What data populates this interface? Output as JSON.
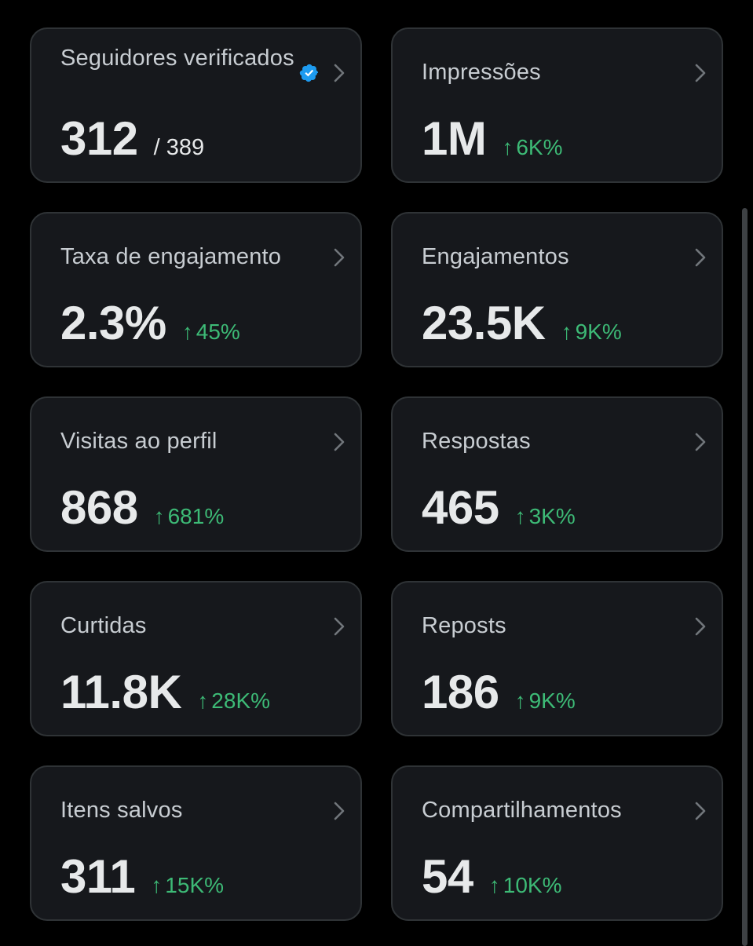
{
  "accent": {
    "verified": "#1d9bf0",
    "positive": "#3dba76"
  },
  "cards": [
    {
      "label": "Seguidores verificados",
      "value": "312",
      "total": "/ 389",
      "icon": "verified-badge-icon"
    },
    {
      "label": "Impressões",
      "value": "1M",
      "delta": "6K%",
      "arrow": "↑"
    },
    {
      "label": "Taxa de engajamento",
      "value": "2.3%",
      "delta": "45%",
      "arrow": "↑"
    },
    {
      "label": "Engajamentos",
      "value": "23.5K",
      "delta": "9K%",
      "arrow": "↑"
    },
    {
      "label": "Visitas ao perfil",
      "value": "868",
      "delta": "681%",
      "arrow": "↑"
    },
    {
      "label": "Respostas",
      "value": "465",
      "delta": "3K%",
      "arrow": "↑"
    },
    {
      "label": "Curtidas",
      "value": "11.8K",
      "delta": "28K%",
      "arrow": "↑"
    },
    {
      "label": "Reposts",
      "value": "186",
      "delta": "9K%",
      "arrow": "↑"
    },
    {
      "label": "Itens salvos",
      "value": "311",
      "delta": "15K%",
      "arrow": "↑"
    },
    {
      "label": "Compartilhamentos",
      "value": "54",
      "delta": "10K%",
      "arrow": "↑"
    }
  ]
}
